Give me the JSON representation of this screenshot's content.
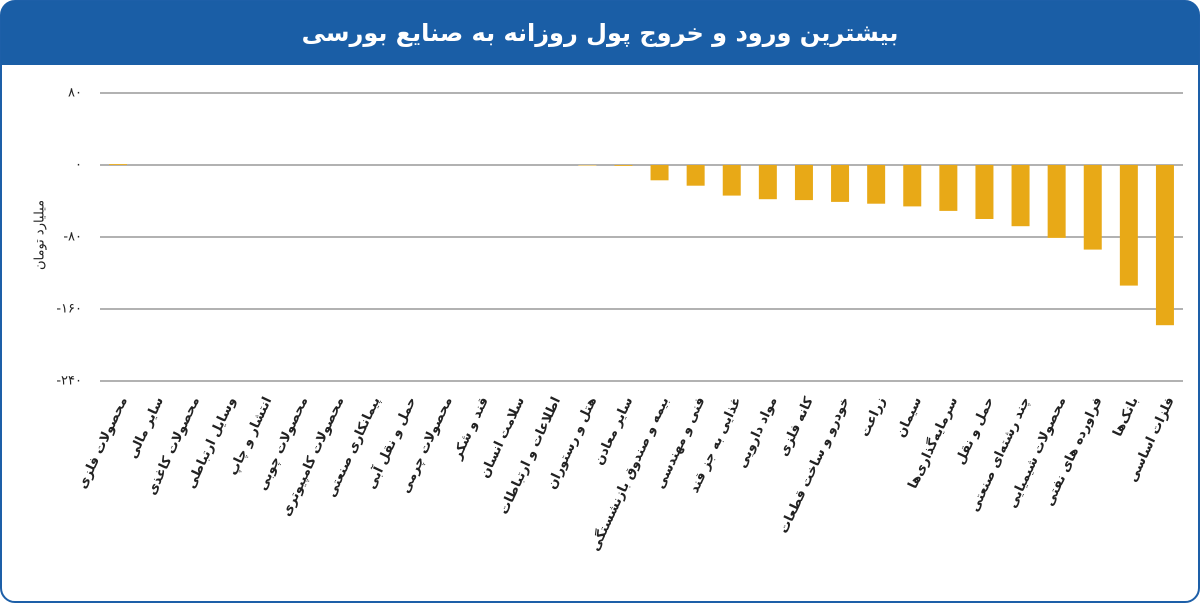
{
  "chart_data": {
    "type": "bar",
    "title": "بیشترین ورود و خروج پول روزانه به صنایع بورسی",
    "y_label": "میلیارد تومان",
    "categories": [
      "محصولات فلزی",
      "سایر مالی",
      "محصولات کاغذی",
      "وسایل ارتباطی",
      "انتشار و چاپ",
      "محصولات چوبی",
      "محصولات کامپیوتری",
      "پیمانکاری صنعتی",
      "حمل و نقل آبی",
      "محصولات چرمی",
      "قند و شکر",
      "سلامت انسان",
      "اطلاعات و ارتباطات",
      "هتل و رستوران",
      "سایر معادن",
      "بیمه و صندوق بازنشستگی",
      "فنی و مهندسی",
      "غذایی به جز قند",
      "مواد دارویی",
      "کانه فلزی",
      "خودرو و ساخت قطعات",
      "زراعت",
      "سیمان",
      "سرمایه‌گذاری‌ها",
      "حمل و نقل",
      "چند رشته‌ای صنعتی",
      "محصولات شیمیایی",
      "فراورده های نفتی",
      "بانک‌ها",
      "فلزات اساسی"
    ],
    "values": [
      1,
      0,
      0,
      0,
      0,
      0,
      0,
      0,
      0,
      0,
      0,
      0,
      0,
      -0.5,
      -1,
      -17,
      -23,
      -34,
      -38,
      -39,
      -41,
      -43,
      -46,
      -51,
      -60,
      -68,
      -81,
      -94,
      -134,
      -178
    ],
    "color": "#e8a917",
    "ylim": [
      -240,
      80
    ],
    "yticks": [
      {
        "value": 80,
        "label": "۸۰"
      },
      {
        "value": 0,
        "label": "۰"
      },
      {
        "value": -80,
        "label": "-۸۰"
      },
      {
        "value": -160,
        "label": "-۱۶۰"
      },
      {
        "value": -240,
        "label": "-۲۴۰"
      }
    ],
    "grid": true
  }
}
